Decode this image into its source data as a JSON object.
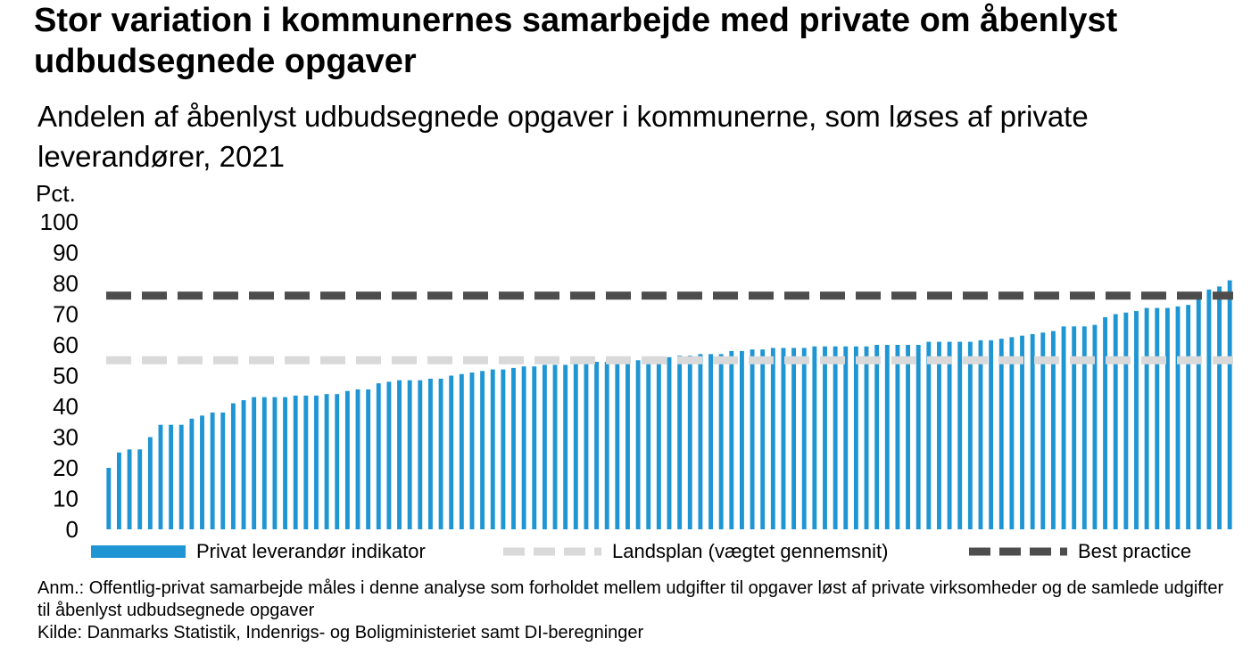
{
  "header": {
    "title": "Stor variation i kommunernes samarbejde med private om åbenlyst udbudsegnede opgaver",
    "subtitle": "Andelen af åbenlyst udbudsegnede opgaver i kommunerne, som løses af private leverandører, 2021",
    "unit": "Pct."
  },
  "legend": {
    "series": "Privat leverandør indikator",
    "national": "Landsplan (vægtet gennemsnit)",
    "best": "Best practice"
  },
  "notes": {
    "anm": "Anm.: Offentlig-privat samarbejde måles i denne analyse som forholdet mellem udgifter til opgaver løst af private virksomheder og de samlede udgifter til åbenlyst udbudsegnede opgaver",
    "kilde": "Kilde: Danmarks Statistik, Indenrigs- og Boligministeriet samt DI-beregninger"
  },
  "colors": {
    "bar": "#1f96d3",
    "national_line": "#d9d9d9",
    "best_line": "#4d4d4d"
  },
  "chart_data": {
    "type": "bar",
    "ylabel": "Pct.",
    "ylim": [
      0,
      100
    ],
    "yticks": [
      0,
      10,
      20,
      30,
      40,
      50,
      60,
      70,
      80,
      90,
      100
    ],
    "grid": false,
    "legend_position": "bottom",
    "values": [
      20,
      25,
      26,
      26,
      30,
      34,
      34,
      34,
      36,
      37,
      38,
      38,
      41,
      42,
      43,
      43,
      43,
      43,
      43.5,
      43.5,
      43.5,
      44,
      44,
      45,
      45.5,
      45.5,
      47.5,
      48,
      48.5,
      48.5,
      48.5,
      49,
      49,
      50,
      50.5,
      51,
      51.5,
      52,
      52,
      52.5,
      53,
      53,
      53.5,
      53.5,
      53.5,
      54,
      54.5,
      54.5,
      54.5,
      55,
      55,
      55,
      55.5,
      56,
      56,
      56.5,
      56.5,
      57,
      57,
      57,
      58,
      58,
      58.5,
      58.5,
      59,
      59,
      59,
      59,
      59.5,
      59.5,
      59.5,
      59.5,
      59.5,
      59.5,
      60,
      60,
      60,
      60,
      60,
      61,
      61,
      61,
      61,
      61,
      61.5,
      61.5,
      62,
      62.5,
      63,
      63.5,
      64,
      64.5,
      66,
      66,
      66,
      66.5,
      69,
      70,
      70.5,
      71,
      72,
      72,
      72,
      72.5,
      73,
      76,
      78,
      79,
      81
    ],
    "national_average": 55,
    "best_practice": 76
  }
}
